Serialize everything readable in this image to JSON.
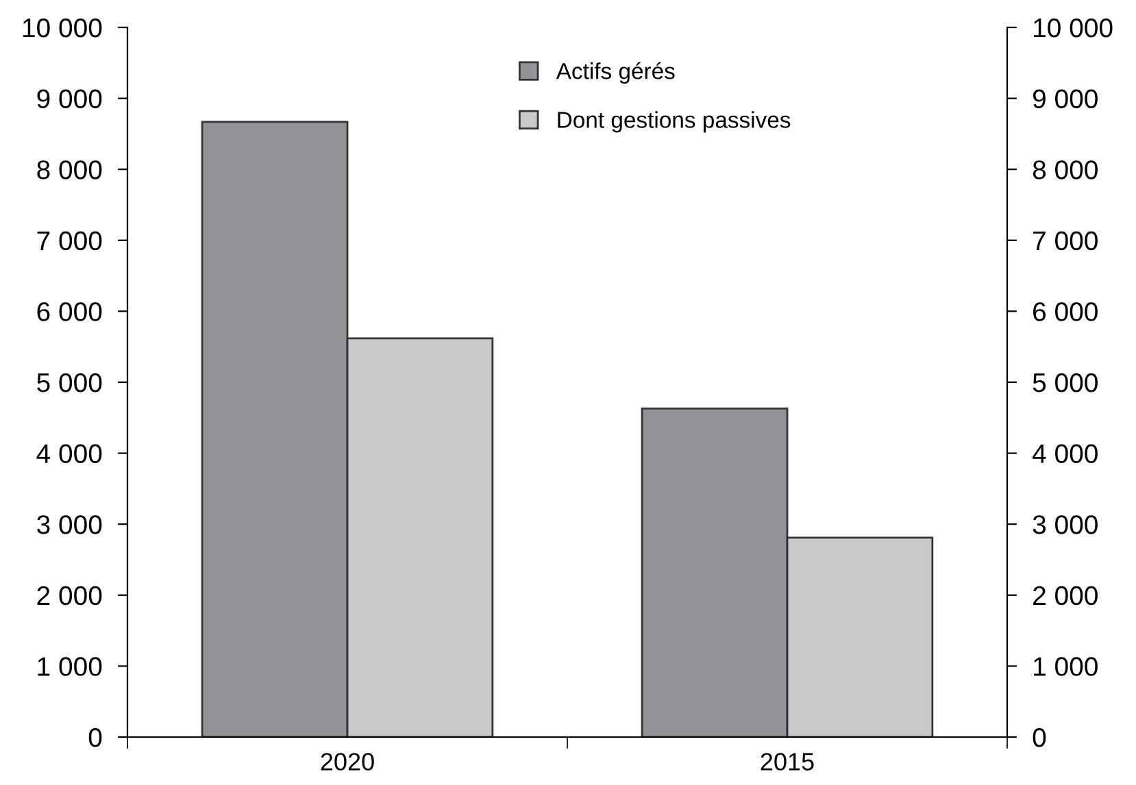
{
  "chart_data": {
    "type": "bar",
    "categories": [
      "2020",
      "2015"
    ],
    "series": [
      {
        "name": "Actifs gérés",
        "color": "#939498",
        "values": [
          8670,
          4630
        ]
      },
      {
        "name": "Dont gestions passives",
        "color": "#c8c9cb",
        "values": [
          5620,
          2810
        ]
      }
    ],
    "ylim": [
      0,
      10000
    ],
    "yticks": [
      {
        "value": 0,
        "label": "0"
      },
      {
        "value": 1000,
        "label": "1 000"
      },
      {
        "value": 2000,
        "label": "2 000"
      },
      {
        "value": 3000,
        "label": "3 000"
      },
      {
        "value": 4000,
        "label": "4 000"
      },
      {
        "value": 5000,
        "label": "5 000"
      },
      {
        "value": 6000,
        "label": "6 000"
      },
      {
        "value": 7000,
        "label": "7 000"
      },
      {
        "value": 8000,
        "label": "8 000"
      },
      {
        "value": 9000,
        "label": "9 000"
      },
      {
        "value": 10000,
        "label": "10 000"
      }
    ],
    "y2lim": [
      0,
      10000
    ],
    "y2ticks": [
      {
        "value": 0,
        "label": "0"
      },
      {
        "value": 1000,
        "label": "1 000"
      },
      {
        "value": 2000,
        "label": "2 000"
      },
      {
        "value": 3000,
        "label": "3 000"
      },
      {
        "value": 4000,
        "label": "4 000"
      },
      {
        "value": 5000,
        "label": "5 000"
      },
      {
        "value": 6000,
        "label": "6 000"
      },
      {
        "value": 7000,
        "label": "7 000"
      },
      {
        "value": 8000,
        "label": "8 000"
      },
      {
        "value": 9000,
        "label": "9 000"
      },
      {
        "value": 10000,
        "label": "10 000"
      }
    ],
    "grid": false,
    "legend": "top"
  }
}
